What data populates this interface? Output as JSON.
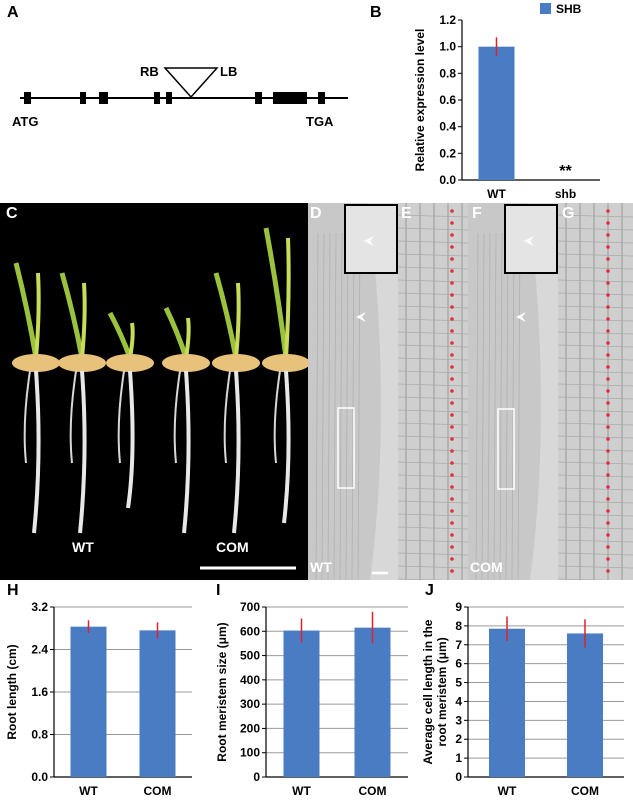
{
  "panel_labels": {
    "A": "A",
    "B": "B",
    "C": "C",
    "D": "D",
    "E": "E",
    "F": "F",
    "G": "G",
    "H": "H",
    "I": "I",
    "J": "J"
  },
  "gene_diagram": {
    "start_label": "ATG",
    "stop_label": "TGA",
    "insert_left": "RB",
    "insert_right": "LB"
  },
  "photo_labels": {
    "c_left": "WT",
    "c_right": "COM",
    "d": "WT",
    "f": "COM"
  },
  "colors": {
    "bar": "#4a7cc4",
    "error": "#e0202a",
    "grid": "#9a9a9a",
    "dot": "#e0303a"
  },
  "chart_data": [
    {
      "id": "B",
      "type": "bar",
      "categories": [
        "WT",
        "shb"
      ],
      "series": [
        {
          "name": "SHB",
          "values": [
            1.0,
            0.0
          ],
          "errors": [
            0.07,
            0.0
          ]
        }
      ],
      "ylabel": "Relative expression level",
      "ylim": [
        0,
        1.2
      ],
      "yticks": [
        "0.0",
        "0.2",
        "0.4",
        "0.6",
        "0.8",
        "1.0",
        "1.2"
      ],
      "annotations": [
        {
          "category": "shb",
          "text": "**"
        }
      ],
      "legend": "top-right",
      "grid": false
    },
    {
      "id": "H",
      "type": "bar",
      "categories": [
        "WT",
        "COM"
      ],
      "values": [
        2.83,
        2.76
      ],
      "errors": [
        0.12,
        0.15
      ],
      "ylabel": "Root length (cm)",
      "ylim": [
        0,
        3.2
      ],
      "yticks": [
        "0.0",
        "0.8",
        "1.6",
        "2.4",
        "3.2"
      ],
      "grid": true
    },
    {
      "id": "I",
      "type": "bar",
      "categories": [
        "WT",
        "COM"
      ],
      "values": [
        603,
        615
      ],
      "errors": [
        50,
        65
      ],
      "ylabel": "Root meristem size (μm)",
      "ylim": [
        0,
        700
      ],
      "yticks": [
        "0",
        "100",
        "200",
        "300",
        "400",
        "500",
        "600",
        "700"
      ],
      "grid": true
    },
    {
      "id": "J",
      "type": "bar",
      "categories": [
        "WT",
        "COM"
      ],
      "values": [
        7.85,
        7.6
      ],
      "errors": [
        0.65,
        0.75
      ],
      "ylabel_lines": [
        "Average cell length in the",
        "root meristem (μm)"
      ],
      "ylim": [
        0,
        9
      ],
      "yticks": [
        "0",
        "1",
        "2",
        "3",
        "4",
        "5",
        "6",
        "7",
        "8",
        "9"
      ],
      "grid": true
    }
  ]
}
